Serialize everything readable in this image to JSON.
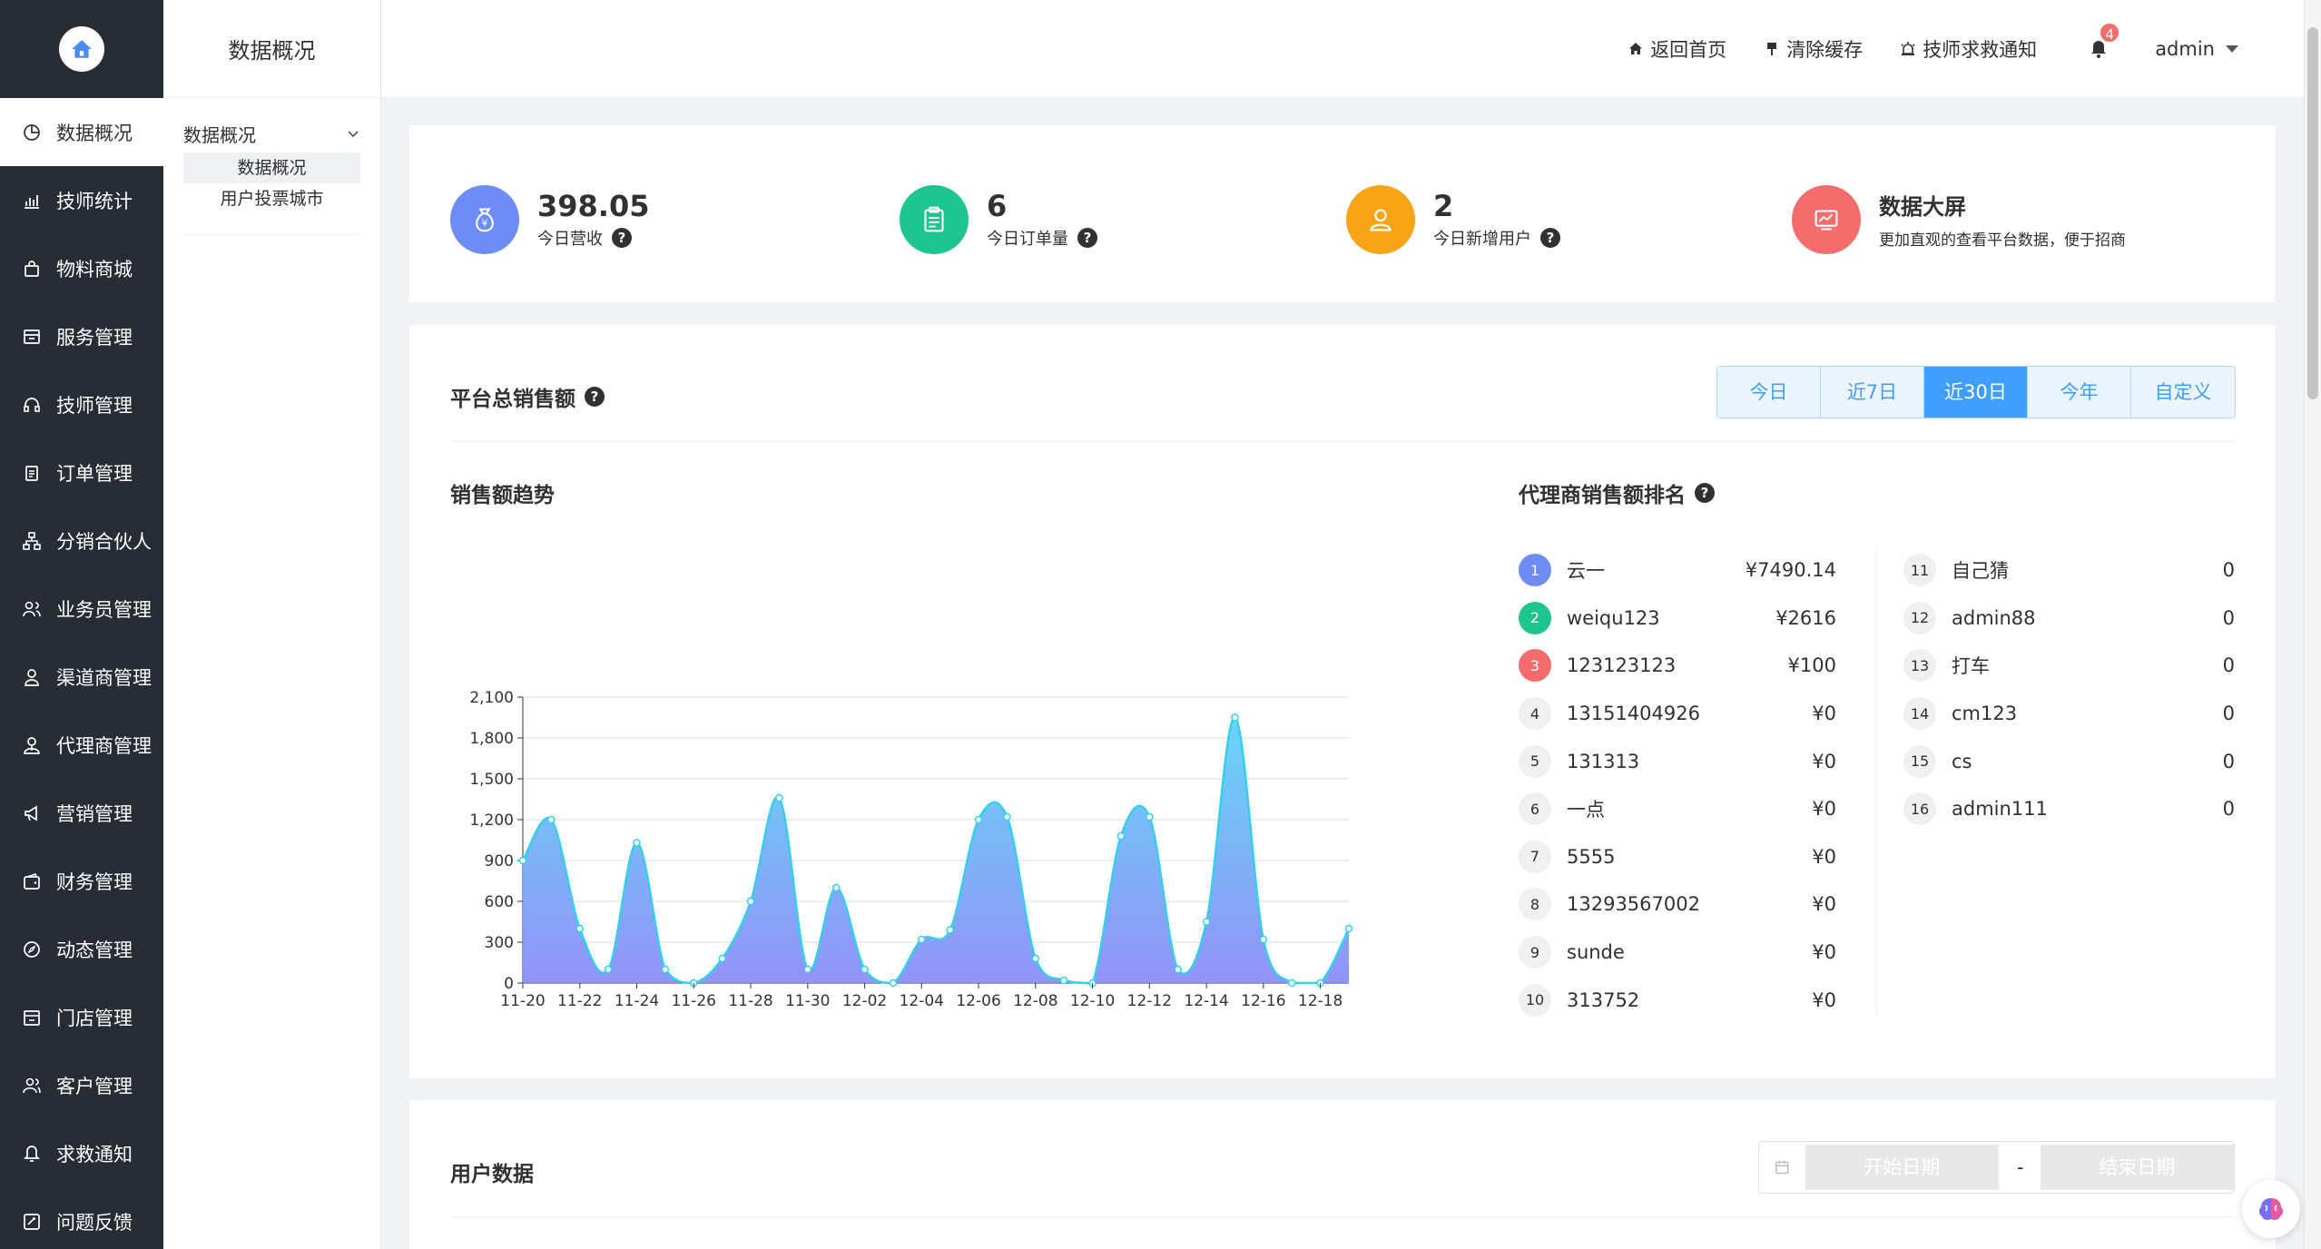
{
  "sidebar": {
    "items": [
      {
        "label": "数据概况",
        "icon": "pie-chart-icon"
      },
      {
        "label": "技师统计",
        "icon": "bar-chart-icon"
      },
      {
        "label": "物料商城",
        "icon": "shopping-bag-icon"
      },
      {
        "label": "服务管理",
        "icon": "service-icon"
      },
      {
        "label": "技师管理",
        "icon": "headset-icon"
      },
      {
        "label": "订单管理",
        "icon": "clipboard-icon"
      },
      {
        "label": "分销合伙人",
        "icon": "hierarchy-icon"
      },
      {
        "label": "业务员管理",
        "icon": "team-icon"
      },
      {
        "label": "渠道商管理",
        "icon": "user-icon"
      },
      {
        "label": "代理商管理",
        "icon": "agent-icon"
      },
      {
        "label": "营销管理",
        "icon": "megaphone-icon"
      },
      {
        "label": "财务管理",
        "icon": "wallet-icon"
      },
      {
        "label": "动态管理",
        "icon": "compass-icon"
      },
      {
        "label": "门店管理",
        "icon": "store-icon"
      },
      {
        "label": "客户管理",
        "icon": "customers-icon"
      },
      {
        "label": "求救通知",
        "icon": "bell-icon"
      },
      {
        "label": "问题反馈",
        "icon": "feedback-icon"
      }
    ]
  },
  "subnav": {
    "title": "数据概况",
    "group_label": "数据概况",
    "links": [
      "数据概况",
      "用户投票城市"
    ]
  },
  "header": {
    "home_label": "返回首页",
    "clear_cache_label": "清除缓存",
    "sos_label": "技师求救通知",
    "notification_count": "4",
    "username": "admin"
  },
  "stats": {
    "revenue": {
      "value": "398.05",
      "label": "今日营收",
      "color": "#6f8bf5"
    },
    "orders": {
      "value": "6",
      "label": "今日订单量",
      "color": "#1fc58e"
    },
    "new_users": {
      "value": "2",
      "label": "今日新增用户",
      "color": "#f7a416"
    },
    "big_screen": {
      "title": "数据大屏",
      "desc": "更加直观的查看平台数据，便于招商",
      "color": "#f56c6c"
    }
  },
  "sales": {
    "title": "平台总销售额",
    "tabs": [
      "今日",
      "近7日",
      "近30日",
      "今年",
      "自定义"
    ],
    "active_tab": 2,
    "trend_title": "销售额趋势",
    "ranking_title": "代理商销售额排名"
  },
  "chart_data": {
    "type": "area",
    "x": [
      "11-20",
      "11-21",
      "11-22",
      "11-23",
      "11-24",
      "11-25",
      "11-26",
      "11-27",
      "11-28",
      "11-29",
      "11-30",
      "12-01",
      "12-02",
      "12-03",
      "12-04",
      "12-05",
      "12-06",
      "12-07",
      "12-08",
      "12-09",
      "12-10",
      "12-11",
      "12-12",
      "12-13",
      "12-14",
      "12-15",
      "12-16",
      "12-17",
      "12-18",
      "12-19"
    ],
    "x_tick_labels": [
      "11-20",
      "11-22",
      "11-24",
      "11-26",
      "11-28",
      "11-30",
      "12-02",
      "12-04",
      "12-06",
      "12-08",
      "12-10",
      "12-12",
      "12-14",
      "12-16",
      "12-18"
    ],
    "values": [
      900,
      1200,
      400,
      100,
      1030,
      100,
      0,
      180,
      600,
      1360,
      100,
      700,
      100,
      0,
      320,
      390,
      1200,
      1220,
      180,
      20,
      0,
      1080,
      1220,
      100,
      450,
      1950,
      320,
      0,
      0,
      400
    ],
    "ylim": [
      0,
      2100
    ],
    "y_ticks": [
      0,
      300,
      600,
      900,
      "1,200",
      "1,500",
      "1,800",
      "2,100"
    ],
    "line_color": "#36cfe8",
    "fill_top_color": "#5fd3f7",
    "fill_bottom_color": "#8c8df7",
    "grid": true
  },
  "ranking": {
    "left": [
      {
        "rank": "1",
        "name": "云一",
        "value": "¥7490.14",
        "color": "#6f8bf5"
      },
      {
        "rank": "2",
        "name": "weiqu123",
        "value": "¥2616",
        "color": "#1fc58e"
      },
      {
        "rank": "3",
        "name": "123123123",
        "value": "¥100",
        "color": "#f56c6c"
      },
      {
        "rank": "4",
        "name": "13151404926",
        "value": "¥0"
      },
      {
        "rank": "5",
        "name": "131313",
        "value": "¥0"
      },
      {
        "rank": "6",
        "name": "一点",
        "value": "¥0"
      },
      {
        "rank": "7",
        "name": "5555",
        "value": "¥0"
      },
      {
        "rank": "8",
        "name": "13293567002",
        "value": "¥0"
      },
      {
        "rank": "9",
        "name": "sunde",
        "value": "¥0"
      },
      {
        "rank": "10",
        "name": "313752",
        "value": "¥0"
      }
    ],
    "right": [
      {
        "rank": "11",
        "name": "自己猜",
        "value": "0"
      },
      {
        "rank": "12",
        "name": "admin88",
        "value": "0"
      },
      {
        "rank": "13",
        "name": "打车",
        "value": "0"
      },
      {
        "rank": "14",
        "name": "cm123",
        "value": "0"
      },
      {
        "rank": "15",
        "name": "cs",
        "value": "0"
      },
      {
        "rank": "16",
        "name": "admin111",
        "value": "0"
      }
    ]
  },
  "user_data": {
    "title": "用户数据",
    "start_placeholder": "开始日期",
    "end_placeholder": "结束日期",
    "separator": "-"
  }
}
